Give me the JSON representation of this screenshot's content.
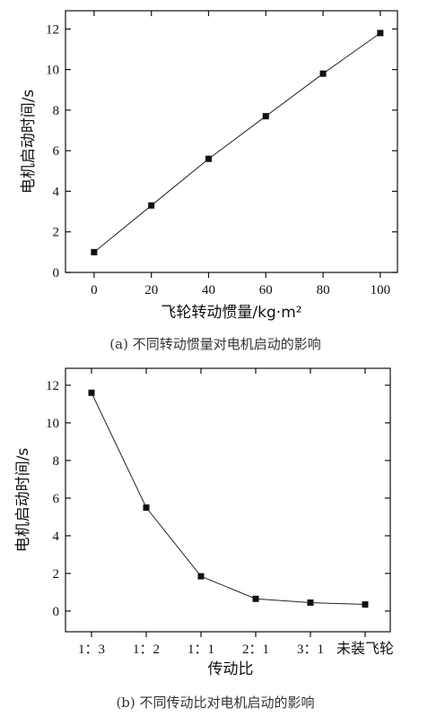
{
  "chart_data": [
    {
      "type": "line",
      "x": [
        0,
        20,
        40,
        60,
        80,
        100
      ],
      "values": [
        1.0,
        3.3,
        5.6,
        7.7,
        9.8,
        11.8
      ],
      "xlabel": "飞轮转动惯量/kg·m²",
      "ylabel": "电机启动时间/s",
      "xlim": [
        -10,
        106
      ],
      "ylim": [
        0,
        12.9
      ],
      "xticks": [
        "0",
        "20",
        "40",
        "60",
        "80",
        "100"
      ],
      "yticks": [
        "0",
        "2",
        "4",
        "6",
        "8",
        "10",
        "12"
      ],
      "caption": "(a) 不同转动惯量对电机启动的影响",
      "marker": "square",
      "grid": false
    },
    {
      "type": "line",
      "categories": [
        "1：3",
        "1：2",
        "1：1",
        "2：1",
        "3：1",
        "未装飞轮"
      ],
      "values": [
        11.6,
        5.5,
        1.85,
        0.65,
        0.45,
        0.35
      ],
      "xlabel": "传动比",
      "ylabel": "电机启动时间/s",
      "ylim": [
        -1.1,
        12.9
      ],
      "yticks": [
        "0",
        "2",
        "4",
        "6",
        "8",
        "10",
        "12"
      ],
      "caption": "(b) 不同传动比对电机启动的影响",
      "marker": "square",
      "grid": false
    }
  ]
}
